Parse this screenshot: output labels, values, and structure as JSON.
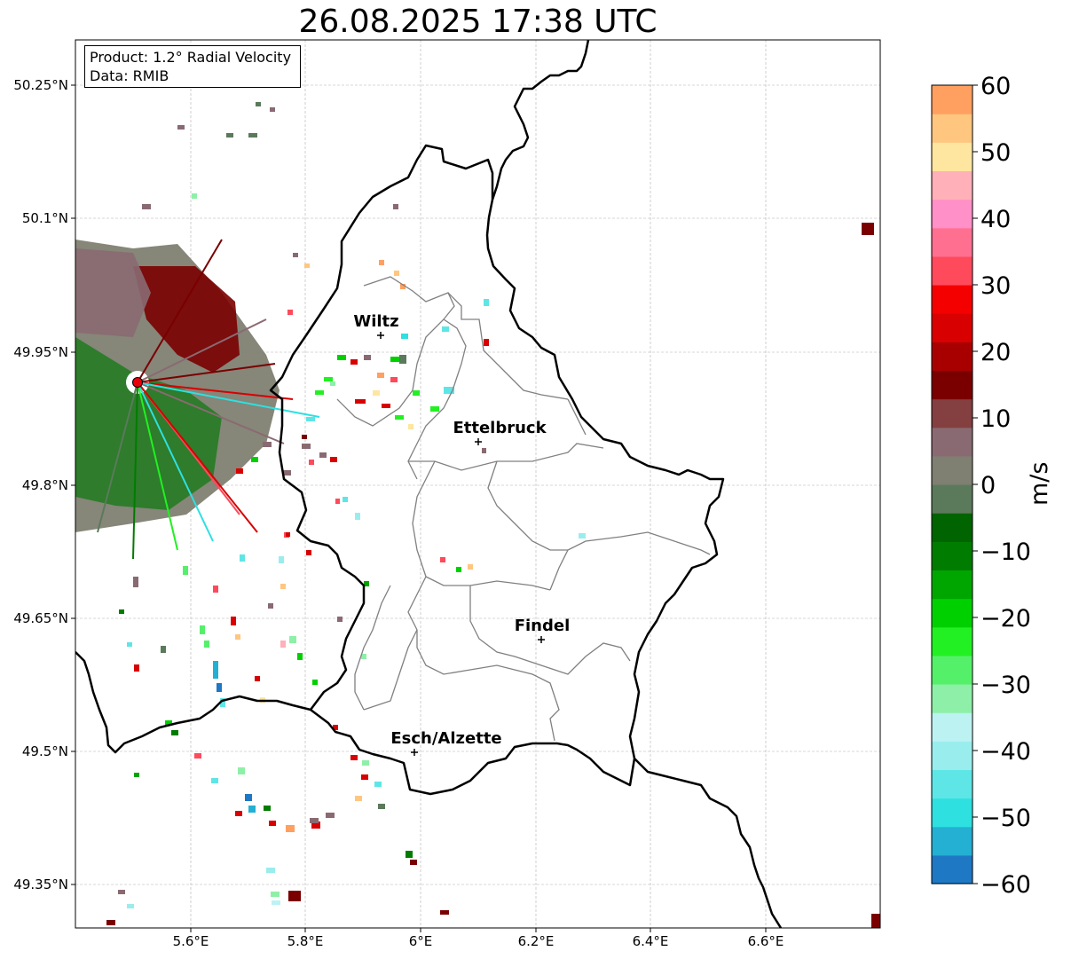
{
  "title": "26.08.2025 17:38 UTC",
  "info": {
    "product": "Product: 1.2° Radial Velocity",
    "data": "Data: RMIB"
  },
  "map": {
    "lon_range": [
      5.4,
      6.8
    ],
    "lat_range": [
      49.3,
      50.3
    ],
    "lon_ticks": [
      "5.6°E",
      "5.8°E",
      "6°E",
      "6.2°E",
      "6.4°E",
      "6.6°E"
    ],
    "lat_ticks": [
      "50.25°N",
      "50.1°N",
      "49.95°N",
      "49.8°N",
      "49.65°N",
      "49.5°N",
      "49.35°N"
    ],
    "gridlines": true,
    "cities": [
      {
        "name": "Wiltz",
        "lon": 5.935,
        "lat": 49.966
      },
      {
        "name": "Ettelbruck",
        "lon": 6.103,
        "lat": 49.848
      },
      {
        "name": "Findel",
        "lon": 6.211,
        "lat": 49.627
      },
      {
        "name": "Esch/Alzette",
        "lon": 5.983,
        "lat": 49.497
      }
    ],
    "radar_site": {
      "lon": 5.506,
      "lat": 49.914,
      "marker_color": "#e8000b"
    }
  },
  "colorbar": {
    "label": "m/s",
    "range": [
      -60,
      60
    ],
    "ticks": [
      "60",
      "50",
      "40",
      "30",
      "20",
      "10",
      "0",
      "−10",
      "−20",
      "−30",
      "−40",
      "−50",
      "−60"
    ],
    "colors_bottom_to_top": [
      "#1f78c4",
      "#23b0d2",
      "#2ee0e0",
      "#5ee6e6",
      "#9aeded",
      "#bdf2f2",
      "#8ef0a8",
      "#55f06a",
      "#22f022",
      "#00d000",
      "#00a600",
      "#007c00",
      "#006400",
      "#5b7a5b",
      "#7f7f72",
      "#8a6a72",
      "#844040",
      "#7a0000",
      "#a80000",
      "#d80000",
      "#f40000",
      "#ff4a5c",
      "#ff7090",
      "#ff90c8",
      "#ffb0b8",
      "#ffe6a0",
      "#ffc680",
      "#ffa060"
    ]
  }
}
